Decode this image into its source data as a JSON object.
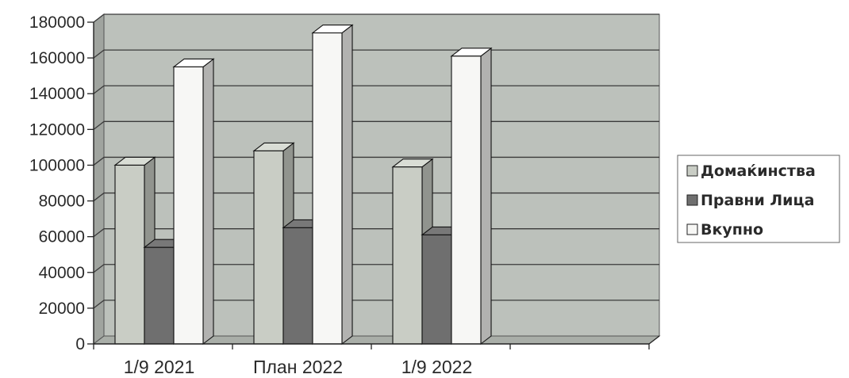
{
  "chart_data": {
    "type": "bar",
    "style": "3d-clustered-column",
    "categories": [
      "1/9 2021",
      "План 2022",
      "1/9 2022"
    ],
    "series": [
      {
        "name": "Домаќинства",
        "values": [
          100000,
          108000,
          99000
        ],
        "color": "#c9cdc5"
      },
      {
        "name": "Правни Лица",
        "values": [
          54000,
          65000,
          61000
        ],
        "color": "#6f6f6f"
      },
      {
        "name": "Вкупно",
        "values": [
          155000,
          174000,
          161000
        ],
        "color": "#f7f7f5"
      }
    ],
    "ylim": [
      0,
      180000
    ],
    "yticks": [
      0,
      20000,
      40000,
      60000,
      80000,
      100000,
      120000,
      140000,
      160000,
      180000
    ],
    "ytick_labels": [
      "0",
      "20000",
      "40000",
      "60000",
      "80000",
      "100000",
      "120000",
      "140000",
      "160000",
      "180000"
    ],
    "grid": true,
    "legend_position": "right",
    "wall_color": "#bcc1bb",
    "title": "",
    "xlabel": "",
    "ylabel": ""
  }
}
